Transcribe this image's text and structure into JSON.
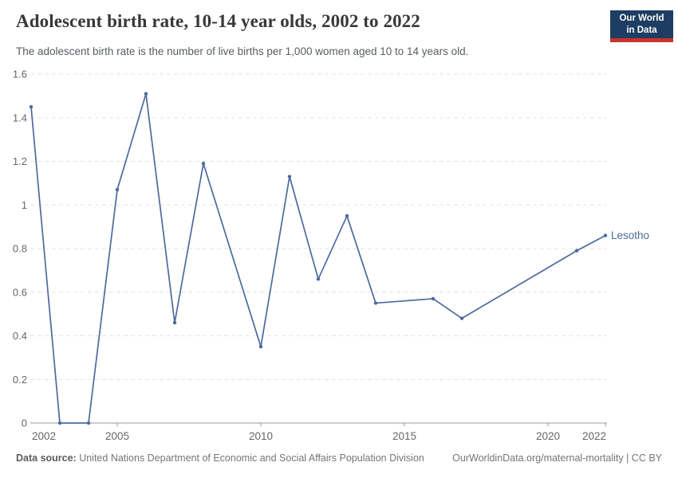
{
  "header": {
    "title": "Adolescent birth rate, 10-14 year olds, 2002 to 2022",
    "subtitle": "The adolescent birth rate is the number of live births per 1,000 women aged 10 to 14 years old.",
    "logo": {
      "line1": "Our World",
      "line2": "in Data",
      "bg_color": "#1d3d63",
      "accent_color": "#c9352c"
    }
  },
  "chart_data": {
    "type": "line",
    "title": "Adolescent birth rate, 10-14 year olds, 2002 to 2022",
    "ylabel": "",
    "xlabel": "",
    "xlim": [
      2002,
      2022
    ],
    "ylim": [
      0,
      1.6
    ],
    "grid": "horizontal-dashed",
    "legend_position": "end-of-line-label",
    "line_color": "#4C6A9C",
    "grid_color": "#e3e3e3",
    "axis_color": "#9a9a9a",
    "tick_label_color": "#666666",
    "series": [
      {
        "name": "Lesotho",
        "points": [
          [
            2002,
            1.45
          ],
          [
            2003,
            0
          ],
          [
            2004,
            0
          ],
          [
            2005,
            1.07
          ],
          [
            2006,
            1.51
          ],
          [
            2007,
            0.46
          ],
          [
            2008,
            1.19
          ],
          [
            2010,
            0.35
          ],
          [
            2011,
            1.13
          ],
          [
            2012,
            0.66
          ],
          [
            2013,
            0.95
          ],
          [
            2014,
            0.55
          ],
          [
            2016,
            0.57
          ],
          [
            2017,
            0.48
          ],
          [
            2021,
            0.79
          ],
          [
            2022,
            0.86
          ]
        ],
        "note_missing_years": [
          2009,
          2015,
          2018,
          2019,
          2020
        ]
      }
    ],
    "y_ticks": [
      {
        "value": 0,
        "label": "0"
      },
      {
        "value": 0.2,
        "label": "0.2"
      },
      {
        "value": 0.4,
        "label": "0.4"
      },
      {
        "value": 0.6,
        "label": "0.6"
      },
      {
        "value": 0.8,
        "label": "0.8"
      },
      {
        "value": 1,
        "label": "1"
      },
      {
        "value": 1.2,
        "label": "1.2"
      },
      {
        "value": 1.4,
        "label": "1.4"
      },
      {
        "value": 1.6,
        "label": "1.6"
      }
    ],
    "x_ticks": [
      {
        "year": 2002,
        "label": "2002",
        "anchor": "start",
        "tick": false
      },
      {
        "year": 2005,
        "label": "2005",
        "anchor": "middle",
        "tick": true
      },
      {
        "year": 2010,
        "label": "2010",
        "anchor": "middle",
        "tick": true
      },
      {
        "year": 2015,
        "label": "2015",
        "anchor": "middle",
        "tick": true
      },
      {
        "year": 2020,
        "label": "2020",
        "anchor": "middle",
        "tick": true
      },
      {
        "year": 2022,
        "label": "2022",
        "anchor": "end",
        "tick": true
      }
    ]
  },
  "footer": {
    "source_label": "Data source:",
    "source_text": " United Nations Department of Economic and Social Affairs Population Division",
    "credit": "OurWorldinData.org/maternal-mortality | CC BY"
  }
}
